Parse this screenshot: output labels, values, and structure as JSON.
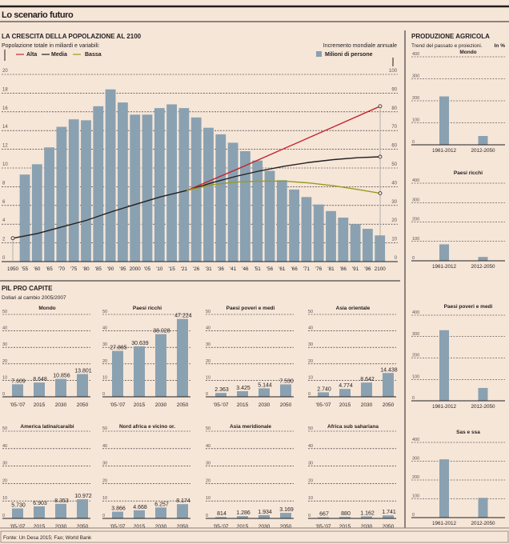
{
  "header": {
    "title": "Lo scenario futuro"
  },
  "colors": {
    "background": "#f6e6d8",
    "bar": "#8aa1b1",
    "alta": "#c4262e",
    "media": "#231f20",
    "bassa": "#9a9a1e"
  },
  "chart_data": [
    {
      "id": "popolazione",
      "type": "bar+line",
      "title": "LA CRESCITA DELLA POPOLAZIONE AL 2100",
      "left_axis_label": "Popolazione totale in miliardi e variabili:",
      "right_axis_label": "Incremento mondiale annuale",
      "legend": {
        "alta": "Alta",
        "media": "Media",
        "bassa": "Bassa",
        "bars": "Milioni di persone"
      },
      "left_ylim": [
        0,
        20
      ],
      "left_ticks": [
        0,
        2,
        4,
        6,
        8,
        10,
        12,
        14,
        16,
        18,
        20
      ],
      "right_ylim": [
        0,
        100
      ],
      "right_ticks": [
        0,
        10,
        20,
        30,
        40,
        50,
        60,
        70,
        80,
        90,
        100
      ],
      "grid": true,
      "x_tick_labels": [
        "1950",
        "'55",
        "'60",
        "'65",
        "'70",
        "'75",
        "'80",
        "'85",
        "'90",
        "'95",
        "2000",
        "'05",
        "'10",
        "'15",
        "'21",
        "'26",
        "'31",
        "'36",
        "'41",
        "'46",
        "'51",
        "'56",
        "'61",
        "'66",
        "'71",
        "'76",
        "'81",
        "'86",
        "'91",
        "'96",
        "2100"
      ],
      "bar_values": [
        46.5,
        52,
        61,
        72,
        76,
        75.5,
        83,
        92,
        85,
        78.5,
        78.5,
        82,
        84,
        82,
        77,
        71.5,
        68,
        63.5,
        59,
        54,
        48.5,
        43.5,
        38.5,
        34.5,
        30.5,
        27,
        23.5,
        20,
        17.5,
        14
      ],
      "series": [
        {
          "name": "Media",
          "x": [
            1950,
            1960,
            1970,
            1980,
            1990,
            2000,
            2010,
            2021,
            2031,
            2041,
            2051,
            2061,
            2071,
            2081,
            2091,
            2100
          ],
          "y": [
            2.5,
            3.0,
            3.7,
            4.4,
            5.3,
            6.1,
            6.9,
            7.6,
            8.4,
            9.1,
            9.7,
            10.2,
            10.6,
            10.9,
            11.1,
            11.2
          ]
        },
        {
          "name": "Alta",
          "x": [
            2021,
            2041,
            2061,
            2081,
            2100
          ],
          "y": [
            7.6,
            9.8,
            12.1,
            14.4,
            16.6
          ]
        },
        {
          "name": "Bassa",
          "x": [
            2021,
            2031,
            2041,
            2051,
            2061,
            2071,
            2081,
            2091,
            2100
          ],
          "y": [
            7.6,
            8.2,
            8.5,
            8.6,
            8.6,
            8.4,
            8.1,
            7.7,
            7.3
          ]
        }
      ]
    },
    {
      "id": "produzione",
      "type": "bar",
      "title": "PRODUZIONE AGRICOLA",
      "subtitle": "Trend del passato e proiezioni.",
      "unit": "In %",
      "ylim": [
        0,
        400
      ],
      "ticks": [
        0,
        100,
        200,
        300,
        400
      ],
      "categories": [
        "1961-2012",
        "2012-2050"
      ],
      "panels": [
        {
          "name": "Mondo",
          "values": [
            220,
            40
          ]
        },
        {
          "name": "Paesi ricchi",
          "values": [
            85,
            20
          ]
        },
        {
          "name": "Paesi poveri e medi",
          "values": [
            330,
            60
          ]
        },
        {
          "name": "Sas e ssa",
          "values": [
            310,
            105
          ]
        }
      ]
    },
    {
      "id": "pil",
      "type": "bar",
      "title": "PIL PRO CAPITE",
      "subtitle": "Dollari al cambio 2005/2007",
      "ylim": [
        0,
        50
      ],
      "ticks": [
        0,
        10,
        20,
        30,
        40,
        50
      ],
      "categories": [
        "'05-'07",
        "2015",
        "2030",
        "2050"
      ],
      "panels": [
        {
          "name": "Mondo",
          "values": [
            7609,
            8648,
            10856,
            13801
          ],
          "labels": [
            "7.609",
            "8.648",
            "10.856",
            "13.801"
          ]
        },
        {
          "name": "Paesi ricchi",
          "values": [
            27865,
            30639,
            38028,
            47224
          ],
          "labels": [
            "27.865",
            "30.639",
            "38.028",
            "47.224"
          ]
        },
        {
          "name": "Paesi poveri e medi",
          "values": [
            2363,
            3425,
            5144,
            7530
          ],
          "labels": [
            "2.363",
            "3.425",
            "5.144",
            "7.530"
          ]
        },
        {
          "name": "Asia orientale",
          "values": [
            2740,
            4774,
            8642,
            14438
          ],
          "labels": [
            "2.740",
            "4.774",
            "8.642",
            "14.438"
          ]
        },
        {
          "name": "America latina/caraibi",
          "values": [
            5730,
            6903,
            8353,
            10972
          ],
          "labels": [
            "5.730",
            "6.903",
            "8.353",
            "10.972"
          ]
        },
        {
          "name": "Nord africa e vicino or.",
          "values": [
            3866,
            4668,
            6257,
            8174
          ],
          "labels": [
            "3.866",
            "4.668",
            "6.257",
            "8.174"
          ]
        },
        {
          "name": "Asia meridionale",
          "values": [
            814,
            1286,
            1934,
            3169
          ],
          "labels": [
            "814",
            "1.286",
            "1.934",
            "3.169"
          ]
        },
        {
          "name": "Africa sub sahariana",
          "values": [
            667,
            880,
            1162,
            1741
          ],
          "labels": [
            "667",
            "880",
            "1.162",
            "1.741"
          ]
        }
      ]
    }
  ],
  "footer": {
    "source": "Fonte: Un Desa 2015; Fao; World Bank"
  }
}
